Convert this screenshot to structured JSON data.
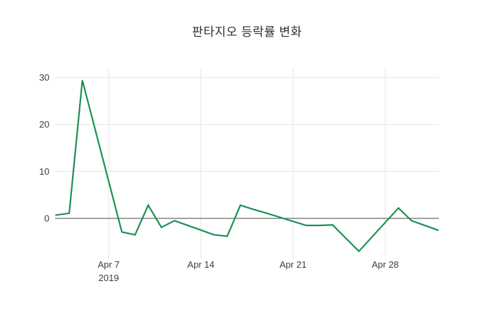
{
  "chart_data": {
    "type": "line",
    "title": "판타지오 등락률 변화",
    "xlabel": "",
    "ylabel": "",
    "grid": true,
    "legend": false,
    "x_range_dates": [
      "2019-04-03",
      "2019-05-02"
    ],
    "ylim": [
      -7.8,
      32
    ],
    "y_ticks": [
      0,
      10,
      20,
      30
    ],
    "x_ticks": [
      {
        "day": 4,
        "label": "Apr 7",
        "sublabel": "2019"
      },
      {
        "day": 11,
        "label": "Apr 14",
        "sublabel": ""
      },
      {
        "day": 18,
        "label": "Apr 21",
        "sublabel": ""
      },
      {
        "day": 25,
        "label": "Apr 28",
        "sublabel": ""
      }
    ],
    "series": [
      {
        "name": "등락률",
        "points": [
          {
            "date": "2019-04-03",
            "day": 0,
            "value": 0.7
          },
          {
            "date": "2019-04-04",
            "day": 1,
            "value": 1.1
          },
          {
            "date": "2019-04-05",
            "day": 2,
            "value": 29.4
          },
          {
            "date": "2019-04-08",
            "day": 5,
            "value": -2.9
          },
          {
            "date": "2019-04-09",
            "day": 6,
            "value": -3.5
          },
          {
            "date": "2019-04-10",
            "day": 7,
            "value": 2.8
          },
          {
            "date": "2019-04-11",
            "day": 8,
            "value": -1.9
          },
          {
            "date": "2019-04-12",
            "day": 9,
            "value": -0.5
          },
          {
            "date": "2019-04-15",
            "day": 12,
            "value": -3.5
          },
          {
            "date": "2019-04-16",
            "day": 13,
            "value": -3.8
          },
          {
            "date": "2019-04-17",
            "day": 14,
            "value": 2.8
          },
          {
            "date": "2019-04-18",
            "day": 15,
            "value": 1.9
          },
          {
            "date": "2019-04-19",
            "day": 16,
            "value": 1.1
          },
          {
            "date": "2019-04-22",
            "day": 19,
            "value": -1.5
          },
          {
            "date": "2019-04-23",
            "day": 20,
            "value": -1.5
          },
          {
            "date": "2019-04-24",
            "day": 21,
            "value": -1.4
          },
          {
            "date": "2019-04-25",
            "day": 22,
            "value": -4.2
          },
          {
            "date": "2019-04-26",
            "day": 23,
            "value": -7.0
          },
          {
            "date": "2019-04-29",
            "day": 26,
            "value": 2.2
          },
          {
            "date": "2019-04-30",
            "day": 27,
            "value": -0.5
          },
          {
            "date": "2019-05-02",
            "day": 29,
            "value": -2.5
          }
        ]
      }
    ]
  },
  "colors": {
    "line": "#1b9154",
    "grid": "#e5e5e5",
    "zeroline": "#474747",
    "tick_label": "#3b3b3b",
    "title": "#2d2d2d",
    "background": "#ffffff"
  }
}
